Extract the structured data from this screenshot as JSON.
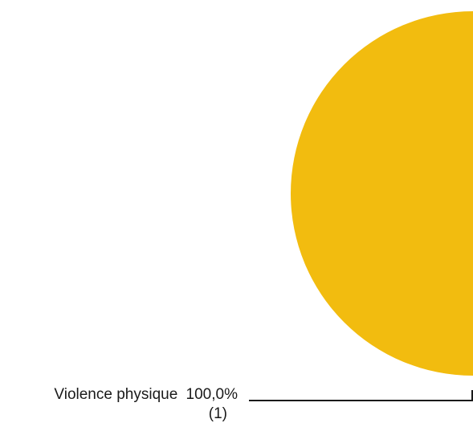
{
  "chart_data": {
    "type": "pie",
    "title": "",
    "slices": [
      {
        "label": "Violence physique",
        "value": 100.0,
        "count": 1,
        "percent_text": "100,0%",
        "count_text": "(1)",
        "color": "#F2BC0F"
      }
    ],
    "legend": "none"
  }
}
